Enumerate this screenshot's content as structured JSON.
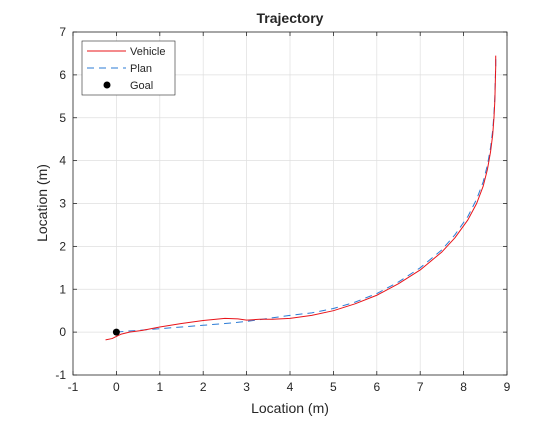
{
  "chart_data": {
    "type": "line",
    "title": "Trajectory",
    "xlabel": "Location (m)",
    "ylabel": "Location (m)",
    "xlim": [
      -1,
      9
    ],
    "ylim": [
      -1,
      7
    ],
    "xticks": [
      "-1",
      "0",
      "1",
      "2",
      "3",
      "4",
      "5",
      "6",
      "7",
      "8",
      "9"
    ],
    "yticks": [
      "-1",
      "0",
      "1",
      "2",
      "3",
      "4",
      "5",
      "6",
      "7"
    ],
    "grid": true,
    "legend_position": "top-left",
    "series": [
      {
        "name": "Vehicle",
        "style": "solid",
        "color": "#e8141a",
        "x": [
          -0.25,
          -0.1,
          0.0,
          0.1,
          0.3,
          0.6,
          1.0,
          1.5,
          2.0,
          2.5,
          2.8,
          3.0,
          3.3,
          3.6,
          4.0,
          4.5,
          5.0,
          5.5,
          6.0,
          6.5,
          7.0,
          7.5,
          7.8,
          8.1,
          8.3,
          8.45,
          8.55,
          8.62,
          8.67,
          8.7,
          8.72,
          8.73,
          8.74,
          8.74
        ],
        "y": [
          -0.18,
          -0.15,
          -0.1,
          -0.05,
          0.0,
          0.04,
          0.12,
          0.2,
          0.27,
          0.32,
          0.31,
          0.28,
          0.3,
          0.3,
          0.32,
          0.39,
          0.5,
          0.66,
          0.86,
          1.13,
          1.45,
          1.87,
          2.2,
          2.62,
          3.0,
          3.4,
          3.8,
          4.2,
          4.6,
          5.0,
          5.4,
          5.8,
          6.2,
          6.45
        ]
      },
      {
        "name": "Plan",
        "style": "dashed",
        "color": "#2b7bd5",
        "x": [
          0.0,
          0.2,
          0.5,
          1.0,
          1.5,
          2.0,
          2.5,
          3.0,
          3.5,
          4.0,
          4.5,
          5.0,
          5.5,
          6.0,
          6.5,
          7.0,
          7.5,
          7.8,
          8.1,
          8.3,
          8.45,
          8.55,
          8.62,
          8.67,
          8.7,
          8.72,
          8.73,
          8.74,
          8.74
        ],
        "y": [
          0.0,
          0.02,
          0.04,
          0.08,
          0.12,
          0.16,
          0.2,
          0.25,
          0.32,
          0.39,
          0.45,
          0.55,
          0.7,
          0.9,
          1.17,
          1.5,
          1.92,
          2.27,
          2.7,
          3.1,
          3.5,
          3.9,
          4.3,
          4.7,
          5.1,
          5.5,
          5.9,
          6.2,
          6.45
        ]
      },
      {
        "name": "Goal",
        "style": "marker",
        "color": "#000000",
        "x": [
          0
        ],
        "y": [
          0
        ]
      }
    ]
  }
}
